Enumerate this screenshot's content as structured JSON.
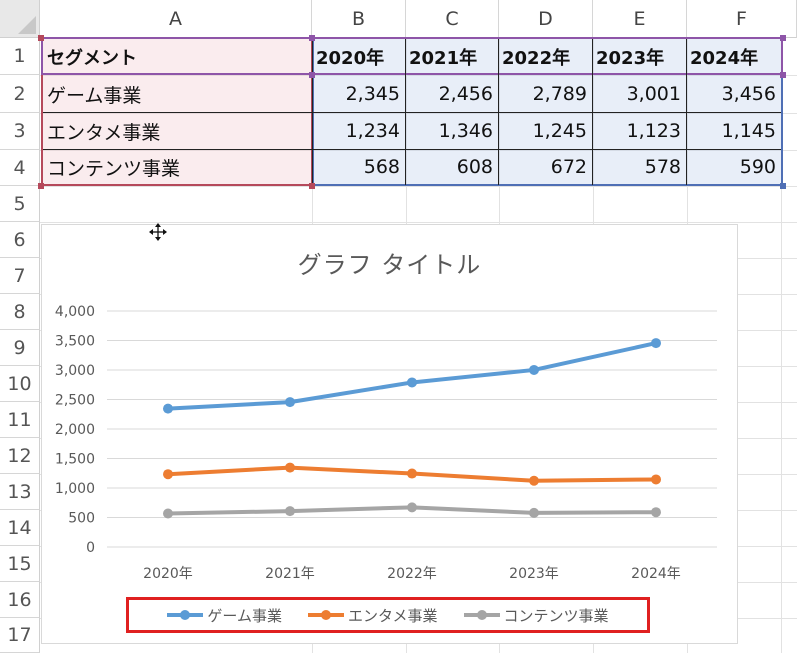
{
  "columns": [
    "A",
    "B",
    "C",
    "D",
    "E",
    "F"
  ],
  "rows": [
    "1",
    "2",
    "3",
    "4",
    "5",
    "6",
    "7",
    "8",
    "9",
    "10",
    "11",
    "12",
    "13",
    "14",
    "15",
    "16",
    "17"
  ],
  "table": {
    "header": [
      "セグメント",
      "2020年",
      "2021年",
      "2022年",
      "2023年",
      "2024年"
    ],
    "rows": [
      [
        "ゲーム事業",
        "2,345",
        "2,456",
        "2,789",
        "3,001",
        "3,456"
      ],
      [
        "エンタメ事業",
        "1,234",
        "1,346",
        "1,245",
        "1,123",
        "1,145"
      ],
      [
        "コンテンツ事業",
        "568",
        "608",
        "672",
        "578",
        "590"
      ]
    ]
  },
  "chart_data": {
    "type": "line",
    "title": "グラフ タイトル",
    "categories": [
      "2020年",
      "2021年",
      "2022年",
      "2023年",
      "2024年"
    ],
    "ylim": [
      0,
      4000
    ],
    "yticks": [
      "0",
      "500",
      "1,000",
      "1,500",
      "2,000",
      "2,500",
      "3,000",
      "3,500",
      "4,000"
    ],
    "grid": true,
    "legend_position": "bottom",
    "series": [
      {
        "name": "ゲーム事業",
        "color": "#5b9bd5",
        "values": [
          2345,
          2456,
          2789,
          3001,
          3456
        ]
      },
      {
        "name": "エンタメ事業",
        "color": "#ed7d31",
        "values": [
          1234,
          1346,
          1245,
          1123,
          1145
        ]
      },
      {
        "name": "コンテンツ事業",
        "color": "#a5a5a5",
        "values": [
          568,
          608,
          672,
          578,
          590
        ]
      }
    ]
  },
  "colors": {
    "selection_text_range": "#b5495b",
    "selection_value_range": "#4f6fb5",
    "selection_header_range": "#8e55a8",
    "legend_highlight": "#e02020"
  },
  "icons": {
    "move_cursor": "move-cursor-icon"
  }
}
